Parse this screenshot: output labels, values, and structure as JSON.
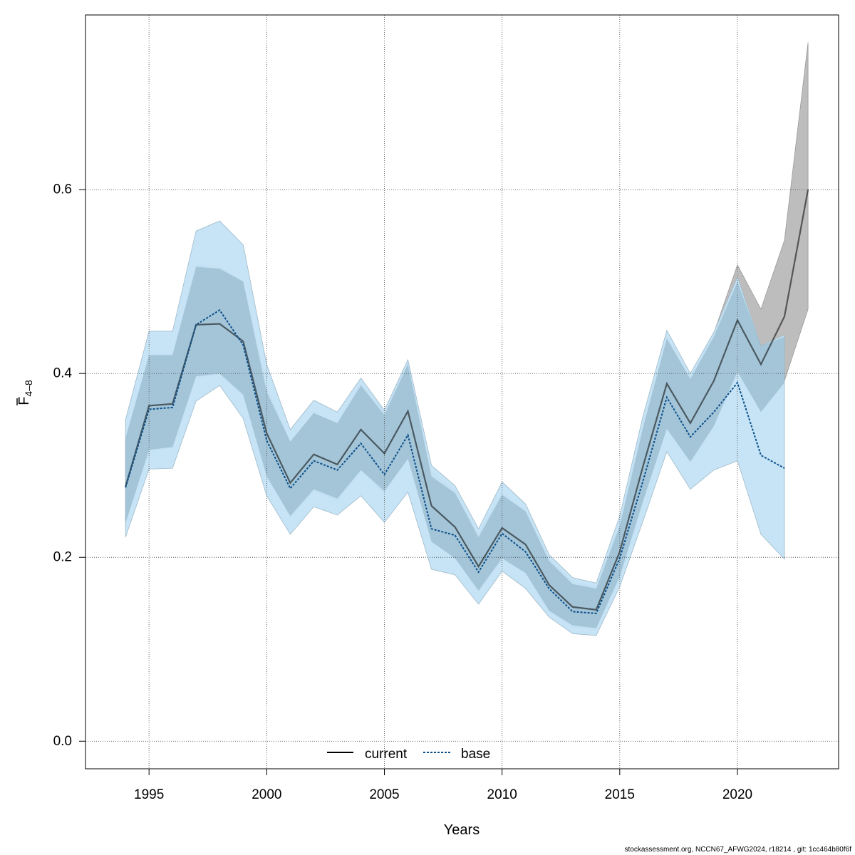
{
  "chart_data": {
    "type": "line",
    "xlabel": "Years",
    "ylabel": {
      "base": "F",
      "subscript": "4–8",
      "overbar": true
    },
    "xlim": [
      1992.3,
      2024.3
    ],
    "ylim": [
      -0.03,
      0.79
    ],
    "x_ticks": [
      1995,
      2000,
      2005,
      2010,
      2015,
      2020
    ],
    "y_ticks": [
      0.0,
      0.2,
      0.4,
      0.6
    ],
    "y_tick_labels": [
      "0.0",
      "0.2",
      "0.4",
      "0.6"
    ],
    "grid": true,
    "legend_position": "bottom-center",
    "series": [
      {
        "name": "current",
        "line_style": "solid",
        "color": "#000000",
        "band_inner_color": "#7a7a7a",
        "band_outer_color": "#bdbdbd",
        "x": [
          1994,
          1995,
          1996,
          1997,
          1998,
          1999,
          2000,
          2001,
          2002,
          2003,
          2004,
          2005,
          2006,
          2007,
          2008,
          2009,
          2010,
          2011,
          2012,
          2013,
          2014,
          2015,
          2016,
          2017,
          2018,
          2019,
          2020,
          2021,
          2022,
          2023
        ],
        "values": [
          0.277,
          0.365,
          0.367,
          0.453,
          0.454,
          0.435,
          0.335,
          0.281,
          0.312,
          0.301,
          0.339,
          0.313,
          0.359,
          0.256,
          0.233,
          0.19,
          0.232,
          0.214,
          0.17,
          0.146,
          0.143,
          0.206,
          0.3,
          0.389,
          0.346,
          0.392,
          0.458,
          0.41,
          0.462,
          0.6
        ],
        "inner_lower": [
          0.24,
          0.316,
          0.319,
          0.396,
          0.399,
          0.376,
          0.291,
          0.244,
          0.272,
          0.262,
          0.294,
          0.27,
          0.311,
          0.217,
          0.2,
          0.162,
          0.198,
          0.183,
          0.141,
          0.124,
          0.121,
          0.178,
          0.26,
          0.34,
          0.303,
          0.342,
          0.4,
          0.36,
          0.392,
          0.47
        ],
        "inner_upper": [
          0.325,
          0.421,
          0.421,
          0.518,
          0.516,
          0.5,
          0.385,
          0.326,
          0.357,
          0.346,
          0.389,
          0.36,
          0.412,
          0.292,
          0.272,
          0.225,
          0.27,
          0.251,
          0.199,
          0.173,
          0.168,
          0.236,
          0.346,
          0.44,
          0.395,
          0.444,
          0.518,
          0.47,
          0.545,
          0.76
        ],
        "outer_lower": [
          0.24,
          0.316,
          0.319,
          0.396,
          0.399,
          0.376,
          0.291,
          0.244,
          0.272,
          0.262,
          0.294,
          0.27,
          0.311,
          0.217,
          0.2,
          0.162,
          0.198,
          0.183,
          0.141,
          0.124,
          0.121,
          0.178,
          0.26,
          0.34,
          0.303,
          0.342,
          0.4,
          0.36,
          0.392,
          0.47
        ],
        "outer_upper": [
          0.325,
          0.421,
          0.421,
          0.518,
          0.516,
          0.5,
          0.385,
          0.326,
          0.357,
          0.346,
          0.389,
          0.36,
          0.412,
          0.292,
          0.272,
          0.225,
          0.27,
          0.251,
          0.199,
          0.173,
          0.168,
          0.236,
          0.346,
          0.44,
          0.395,
          0.444,
          0.518,
          0.47,
          0.545,
          0.76
        ]
      },
      {
        "name": "base",
        "line_style": "dotted",
        "color": "#0b4f8a",
        "band_inner_color": "#9fc4dc",
        "band_outer_color": "#c3e3f4",
        "x": [
          1994,
          1995,
          1996,
          1997,
          1998,
          1999,
          2000,
          2001,
          2002,
          2003,
          2004,
          2005,
          2006,
          2007,
          2008,
          2009,
          2010,
          2011,
          2012,
          2013,
          2014,
          2015,
          2016,
          2017,
          2018,
          2019,
          2020,
          2021,
          2022
        ],
        "values": [
          0.276,
          0.361,
          0.363,
          0.453,
          0.469,
          0.431,
          0.327,
          0.275,
          0.305,
          0.295,
          0.324,
          0.29,
          0.333,
          0.231,
          0.224,
          0.184,
          0.226,
          0.206,
          0.166,
          0.141,
          0.139,
          0.199,
          0.284,
          0.374,
          0.331,
          0.358,
          0.39,
          0.311,
          0.297
        ],
        "inner_lower": [
          0.237,
          0.317,
          0.32,
          0.397,
          0.4,
          0.377,
          0.288,
          0.245,
          0.274,
          0.264,
          0.295,
          0.272,
          0.307,
          0.217,
          0.199,
          0.164,
          0.199,
          0.183,
          0.142,
          0.126,
          0.123,
          0.179,
          0.262,
          0.34,
          0.304,
          0.343,
          0.402,
          0.358,
          0.39
        ],
        "inner_upper": [
          0.33,
          0.42,
          0.42,
          0.516,
          0.514,
          0.5,
          0.38,
          0.326,
          0.357,
          0.346,
          0.387,
          0.355,
          0.41,
          0.288,
          0.27,
          0.222,
          0.268,
          0.25,
          0.196,
          0.171,
          0.166,
          0.234,
          0.342,
          0.438,
          0.394,
          0.44,
          0.5,
          0.43,
          0.44
        ],
        "outer_lower": [
          0.222,
          0.296,
          0.297,
          0.37,
          0.387,
          0.351,
          0.267,
          0.225,
          0.255,
          0.246,
          0.267,
          0.238,
          0.271,
          0.187,
          0.181,
          0.149,
          0.185,
          0.166,
          0.135,
          0.117,
          0.115,
          0.168,
          0.24,
          0.315,
          0.274,
          0.295,
          0.305,
          0.225,
          0.198
        ],
        "outer_upper": [
          0.35,
          0.446,
          0.446,
          0.555,
          0.566,
          0.54,
          0.41,
          0.339,
          0.371,
          0.358,
          0.395,
          0.36,
          0.415,
          0.3,
          0.278,
          0.231,
          0.282,
          0.258,
          0.203,
          0.178,
          0.172,
          0.245,
          0.355,
          0.447,
          0.4,
          0.445,
          0.505,
          0.43,
          0.442
        ]
      }
    ]
  },
  "legend": {
    "items": [
      {
        "label": "current"
      },
      {
        "label": "base"
      }
    ]
  },
  "footer": {
    "text": "stockassessment.org, NCCN67_AFWG2024, r18214 , git: 1cc464b80f6f"
  }
}
